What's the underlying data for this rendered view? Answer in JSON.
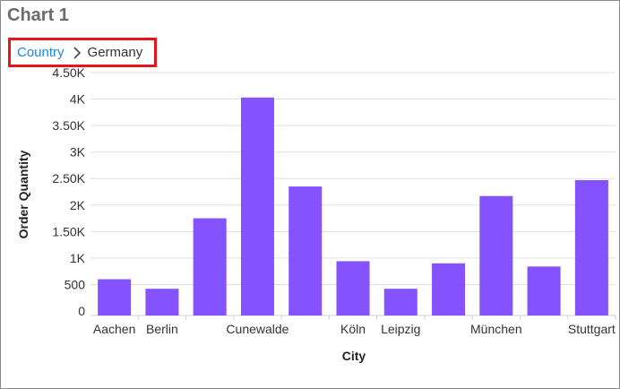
{
  "header": {
    "title": "Chart 1"
  },
  "breadcrumb": {
    "root_label": "Country",
    "current_label": "Germany"
  },
  "icons": {
    "separator": "chevron-right-icon"
  },
  "colors": {
    "bar": "#8453ff",
    "link": "#1e88e5",
    "highlight_border": "#e8141c",
    "grid": "#e0e0e0"
  },
  "chart_data": {
    "type": "bar",
    "xlabel": "City",
    "ylabel": "Order Quantity",
    "ylim": [
      0,
      4500
    ],
    "yticks": [
      0,
      500,
      1000,
      1500,
      2000,
      2500,
      3000,
      3500,
      4000,
      4500
    ],
    "ytick_labels": [
      "0",
      "500",
      "1K",
      "1.50K",
      "2K",
      "2.50K",
      "3K",
      "3.50K",
      "4K",
      "4.50K"
    ],
    "grid": true,
    "legend": "none",
    "categories": [
      "Aachen",
      "Berlin",
      "",
      "Cunewalde",
      "",
      "Köln",
      "Leipzig",
      "",
      "München",
      "",
      "Stuttgart"
    ],
    "values": [
      600,
      420,
      1750,
      4030,
      2350,
      940,
      420,
      900,
      2170,
      840,
      2470
    ]
  }
}
